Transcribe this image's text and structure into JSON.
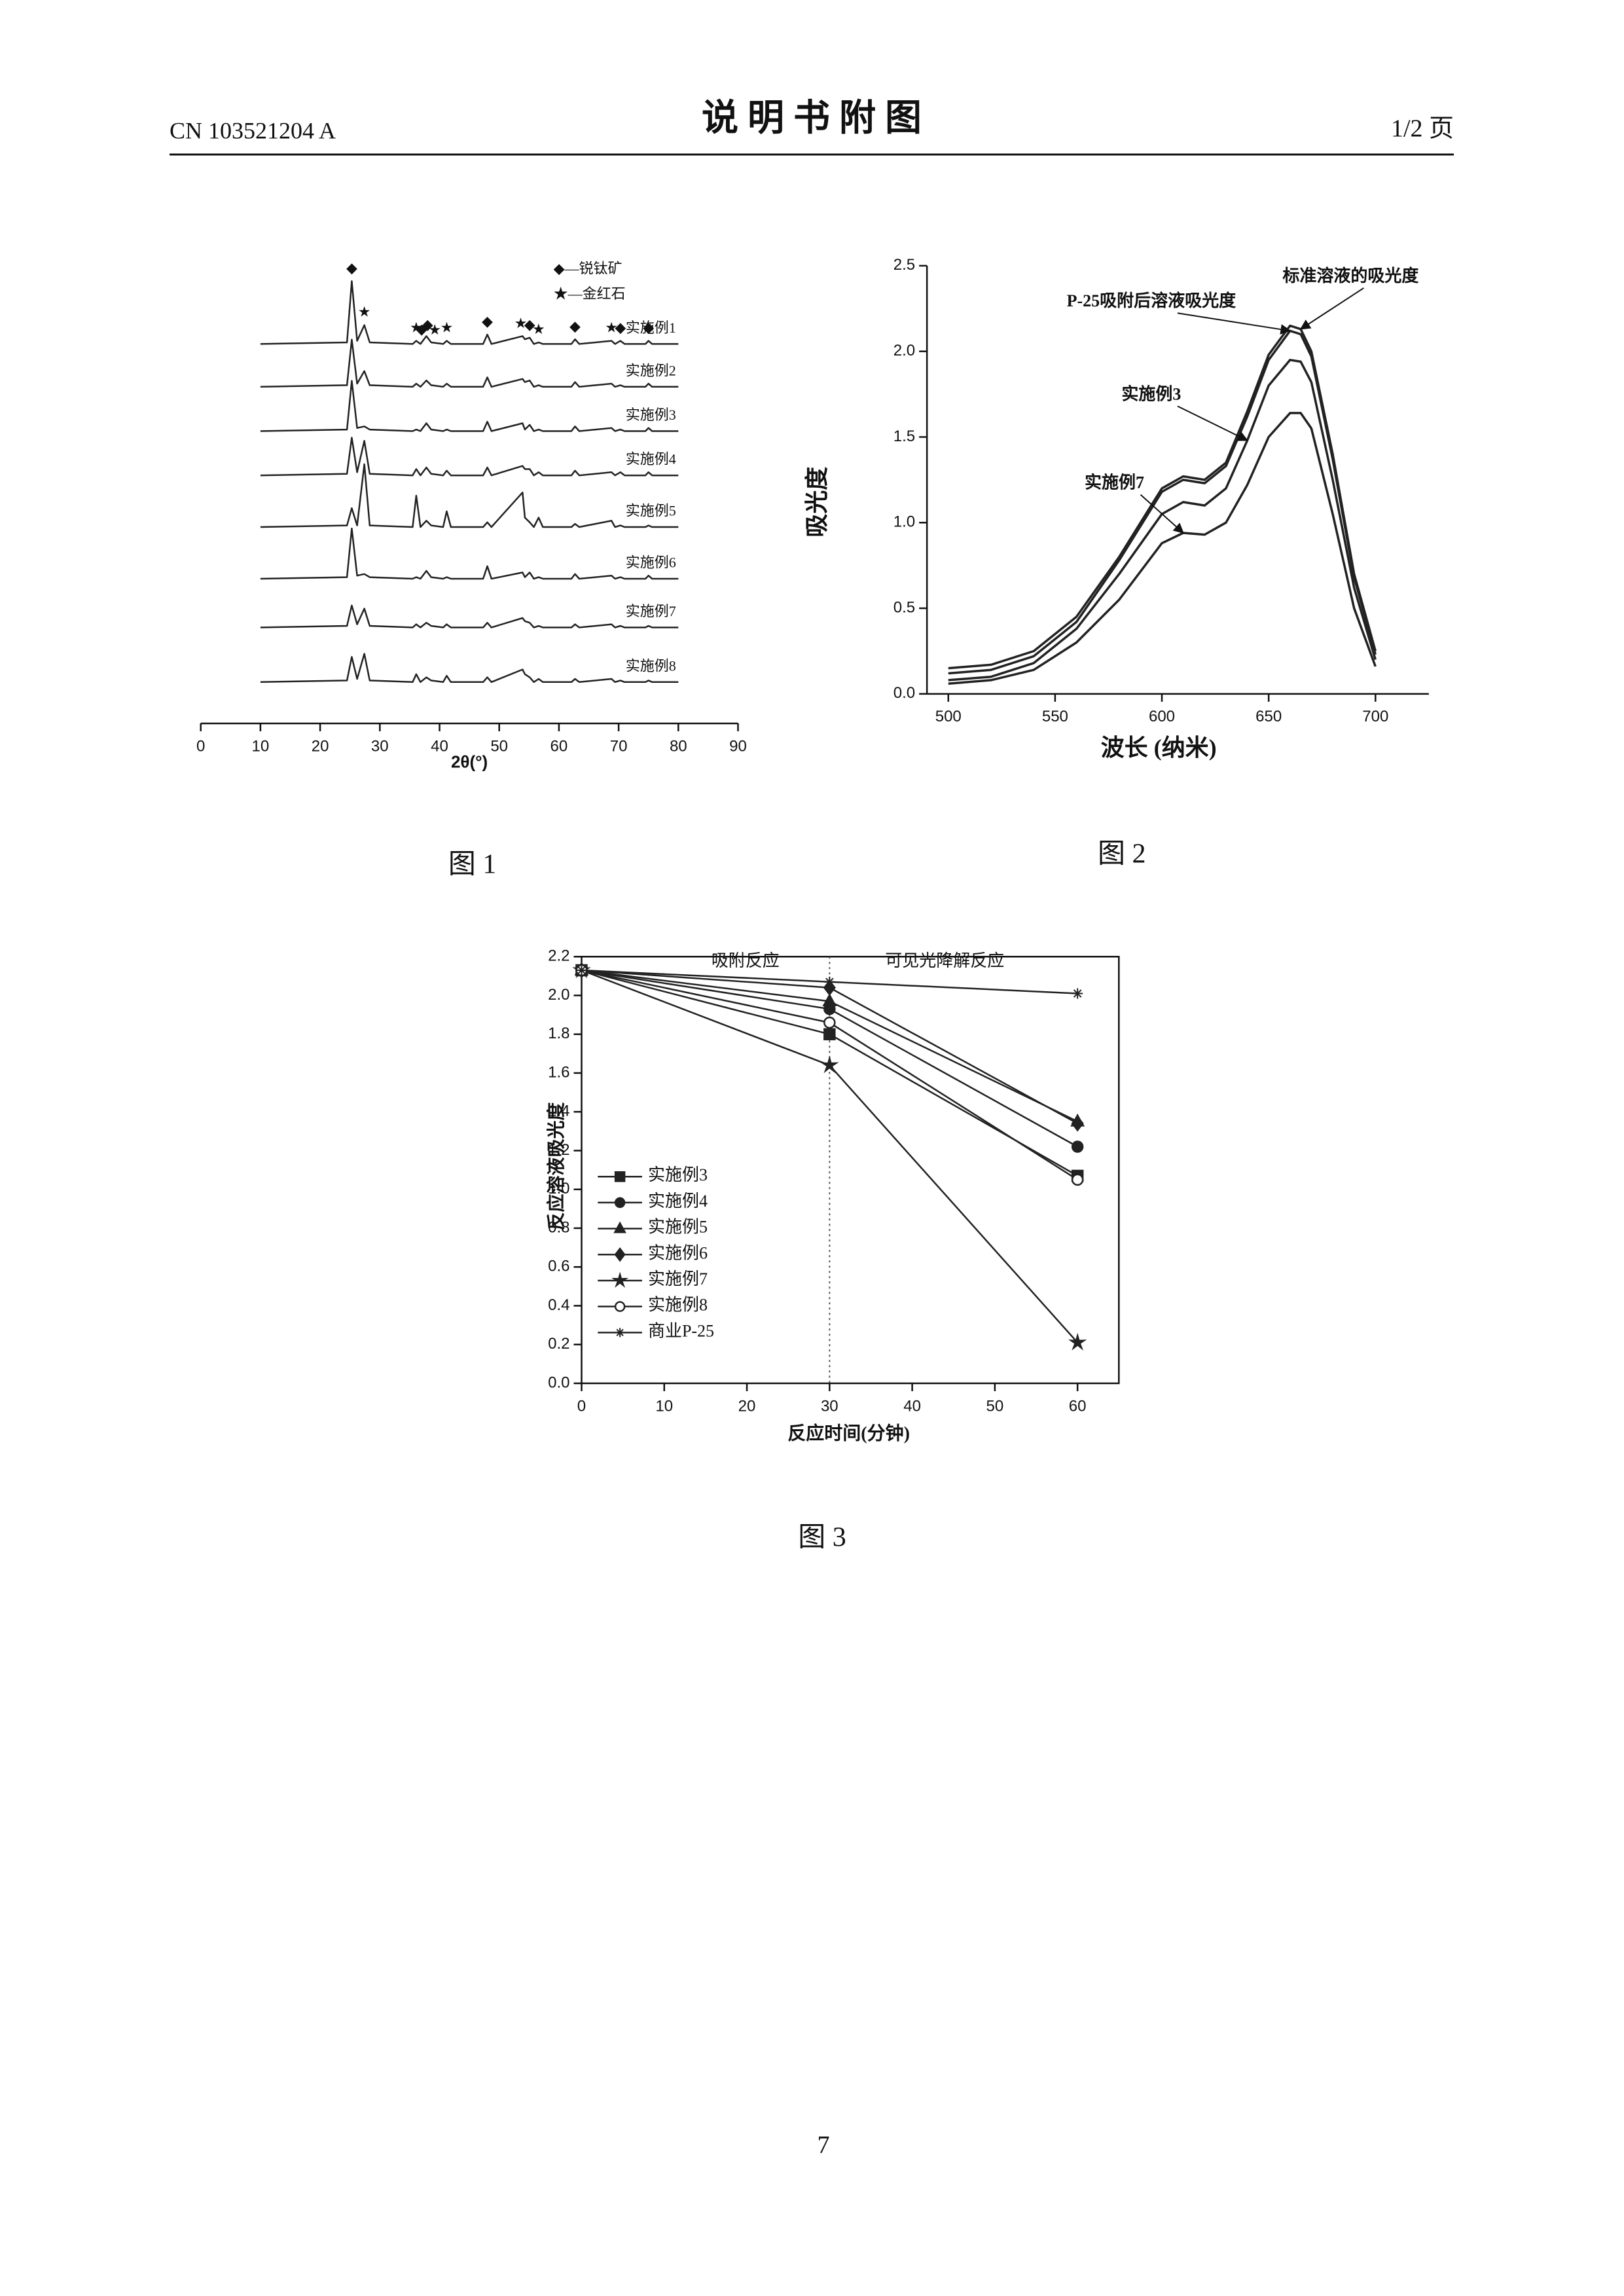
{
  "header": {
    "doc_number": "CN 103521204 A",
    "title": "说 明 书 附 图",
    "page_of": "1/2 页"
  },
  "page_number": "7",
  "chart_data": [
    {
      "type": "ridgeline",
      "caption": "图 1",
      "x_label": "2θ(°)",
      "color": "#222",
      "xlim": [
        0,
        90
      ],
      "xticks": [
        0,
        10,
        20,
        30,
        40,
        50,
        60,
        70,
        80,
        90
      ],
      "legend": "upper right",
      "legend_items": [
        "◆—锐钛矿",
        "★—金红石"
      ],
      "x": [
        10,
        24.5,
        25.3,
        26.2,
        27.4,
        28.3,
        35.5,
        36.1,
        36.8,
        37.8,
        38.6,
        40.6,
        41.2,
        41.9,
        47.3,
        48.0,
        48.7,
        53.9,
        54.3,
        55.1,
        55.8,
        56.6,
        57.3,
        62.1,
        62.7,
        63.4,
        68.8,
        69.4,
        70.3,
        71.0,
        74.5,
        75.0,
        75.6,
        80
      ],
      "series": [
        {
          "name": "实施例1",
          "values": [
            0,
            1,
            40,
            2,
            12,
            1,
            0,
            2,
            0,
            5,
            1,
            0,
            2,
            0,
            0,
            6,
            0,
            5,
            3,
            4,
            0,
            1,
            0,
            0,
            3,
            0,
            2,
            0,
            2,
            0,
            0,
            2,
            0,
            0
          ]
        },
        {
          "name": "实施例2",
          "values": [
            0,
            1,
            30,
            2,
            10,
            1,
            0,
            2,
            0,
            4,
            1,
            0,
            2,
            0,
            0,
            6,
            0,
            5,
            3,
            4,
            0,
            1,
            0,
            0,
            3,
            0,
            2,
            0,
            1,
            0,
            0,
            2,
            0,
            0
          ]
        },
        {
          "name": "实施例3",
          "values": [
            0,
            1,
            32,
            2,
            3,
            1,
            0,
            1,
            0,
            5,
            1,
            0,
            1,
            0,
            0,
            6,
            0,
            5,
            1,
            4,
            0,
            1,
            0,
            0,
            3,
            0,
            2,
            0,
            1,
            0,
            0,
            2,
            0,
            0
          ]
        },
        {
          "name": "实施例4",
          "values": [
            0,
            1,
            24,
            2,
            22,
            1,
            0,
            4,
            0,
            5,
            1,
            0,
            3,
            0,
            0,
            5,
            0,
            6,
            4,
            4,
            0,
            2,
            0,
            0,
            3,
            0,
            2,
            0,
            2,
            0,
            0,
            2,
            0,
            0
          ]
        },
        {
          "name": "实施例5",
          "values": [
            0,
            1,
            12,
            1,
            40,
            1,
            0,
            20,
            0,
            4,
            1,
            0,
            10,
            0,
            0,
            3,
            0,
            22,
            6,
            3,
            0,
            6,
            0,
            0,
            2,
            0,
            4,
            0,
            1,
            0,
            0,
            1,
            0,
            0
          ]
        },
        {
          "name": "实施例6",
          "values": [
            0,
            1,
            32,
            2,
            3,
            1,
            0,
            1,
            0,
            5,
            1,
            0,
            1,
            0,
            0,
            8,
            0,
            4,
            1,
            4,
            0,
            1,
            0,
            0,
            3,
            0,
            2,
            0,
            1,
            0,
            0,
            2,
            0,
            0
          ]
        },
        {
          "name": "实施例7",
          "values": [
            0,
            1,
            14,
            2,
            12,
            1,
            0,
            2,
            0,
            3,
            1,
            0,
            2,
            0,
            0,
            3,
            0,
            6,
            4,
            3,
            0,
            1,
            0,
            0,
            2,
            0,
            2,
            0,
            1,
            0,
            0,
            1,
            0,
            0
          ]
        },
        {
          "name": "实施例8",
          "values": [
            0,
            1,
            16,
            2,
            18,
            1,
            0,
            5,
            0,
            3,
            1,
            0,
            4,
            0,
            0,
            3,
            0,
            8,
            5,
            3,
            0,
            2,
            0,
            0,
            2,
            0,
            2,
            0,
            1,
            0,
            0,
            1,
            0,
            0
          ]
        }
      ],
      "markers": [
        {
          "symbol": "◆",
          "x": 25.3
        },
        {
          "symbol": "★",
          "x": 27.4
        },
        {
          "symbol": "★",
          "x": 36.1
        },
        {
          "symbol": "◆",
          "x": 37.0
        },
        {
          "symbol": "◆",
          "x": 38.0
        },
        {
          "symbol": "★",
          "x": 39.2
        },
        {
          "symbol": "★",
          "x": 41.2
        },
        {
          "symbol": "◆",
          "x": 48.0
        },
        {
          "symbol": "★",
          "x": 53.6
        },
        {
          "symbol": "◆",
          "x": 55.1
        },
        {
          "symbol": "★",
          "x": 56.6
        },
        {
          "symbol": "◆",
          "x": 62.7
        },
        {
          "symbol": "★",
          "x": 68.8
        },
        {
          "symbol": "◆",
          "x": 70.3
        },
        {
          "symbol": "◆",
          "x": 75.0
        }
      ]
    },
    {
      "type": "line",
      "caption": "图 2",
      "x_label": "波长 (纳米)",
      "y_label": "吸光度",
      "color": "#222",
      "xlim": [
        490,
        725
      ],
      "xticks": [
        500,
        550,
        600,
        650,
        700
      ],
      "ylim": [
        0,
        2.5
      ],
      "yticks": [
        {
          "value": 0,
          "label": "0.0"
        },
        0.5,
        {
          "value": 1,
          "label": "1.0"
        },
        1.5,
        {
          "value": 2,
          "label": "2.0"
        },
        2.5
      ],
      "x": [
        500,
        520,
        540,
        560,
        580,
        600,
        610,
        620,
        630,
        640,
        650,
        660,
        665,
        670,
        680,
        690,
        700
      ],
      "series": [
        {
          "name": "标准溶液的吸光度",
          "values": [
            0.15,
            0.17,
            0.25,
            0.45,
            0.8,
            1.2,
            1.27,
            1.25,
            1.35,
            1.65,
            1.98,
            2.15,
            2.13,
            2.0,
            1.4,
            0.7,
            0.25
          ]
        },
        {
          "name": "P-25吸附后溶液吸光度",
          "values": [
            0.12,
            0.14,
            0.22,
            0.42,
            0.78,
            1.18,
            1.25,
            1.23,
            1.33,
            1.62,
            1.95,
            2.12,
            2.1,
            1.97,
            1.37,
            0.68,
            0.23
          ]
        },
        {
          "name": "实施例3",
          "values": [
            0.08,
            0.1,
            0.18,
            0.38,
            0.7,
            1.05,
            1.12,
            1.1,
            1.2,
            1.48,
            1.8,
            1.95,
            1.94,
            1.82,
            1.25,
            0.62,
            0.2
          ]
        },
        {
          "name": "实施例7",
          "values": [
            0.06,
            0.08,
            0.14,
            0.3,
            0.55,
            0.88,
            0.94,
            0.93,
            1.0,
            1.22,
            1.5,
            1.64,
            1.64,
            1.55,
            1.05,
            0.5,
            0.16
          ]
        }
      ]
    },
    {
      "type": "line",
      "caption": "图 3",
      "x_label": "反应时间(分钟)",
      "y_label": "反应溶液吸光度",
      "color": "#222",
      "xlim": [
        0,
        65
      ],
      "xticks": [
        0,
        10,
        20,
        30,
        40,
        50,
        60
      ],
      "ylim": [
        0,
        2.2
      ],
      "yticks": [
        {
          "value": 0,
          "label": "0.0"
        },
        0.2,
        0.4,
        0.6,
        0.8,
        {
          "value": 1,
          "label": "1.0"
        },
        1.2,
        1.4,
        1.6,
        1.8,
        {
          "value": 2,
          "label": "2.0"
        },
        2.2
      ],
      "vline": 30,
      "annotations": [
        "吸附反应",
        "可见光降解反应"
      ],
      "legend": "lower left",
      "x": [
        0,
        30,
        60
      ],
      "series": [
        {
          "name": "实施例3",
          "marker": "square",
          "values": [
            2.13,
            1.8,
            1.07
          ]
        },
        {
          "name": "实施例4",
          "marker": "circle",
          "values": [
            2.13,
            1.93,
            1.22
          ]
        },
        {
          "name": "实施例5",
          "marker": "triangle",
          "values": [
            2.13,
            1.97,
            1.35
          ]
        },
        {
          "name": "实施例6",
          "marker": "diamond",
          "values": [
            2.13,
            2.04,
            1.34
          ]
        },
        {
          "name": "实施例7",
          "marker": "star",
          "values": [
            2.13,
            1.64,
            0.21
          ]
        },
        {
          "name": "实施例8",
          "marker": "open-circle",
          "values": [
            2.13,
            1.86,
            1.05
          ]
        },
        {
          "name": "商业P-25",
          "marker": "asterisk",
          "values": [
            2.13,
            2.07,
            2.01
          ]
        }
      ]
    }
  ]
}
